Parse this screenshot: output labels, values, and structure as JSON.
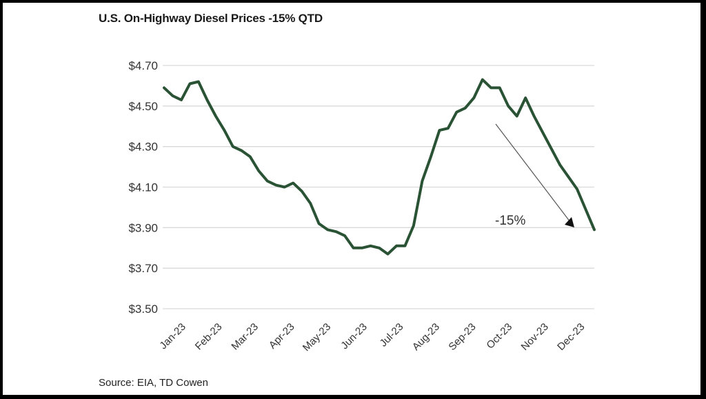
{
  "chart_data": {
    "type": "line",
    "title": "U.S. On-Highway Diesel Prices -15% QTD",
    "source": "Source: EIA, TD Cowen",
    "xlabel": "",
    "ylabel": "",
    "ylim": [
      3.5,
      4.7
    ],
    "grid": true,
    "y_ticks": [
      3.5,
      3.7,
      3.9,
      4.1,
      4.3,
      4.5,
      4.7
    ],
    "y_tick_labels": [
      "$3.50",
      "$3.70",
      "$3.90",
      "$4.10",
      "$4.30",
      "$4.50",
      "$4.70"
    ],
    "x_tick_labels": [
      "Jan-23",
      "Feb-23",
      "Mar-23",
      "Apr-23",
      "May-23",
      "Jun-23",
      "Jul-23",
      "Aug-23",
      "Sep-23",
      "Oct-23",
      "Nov-23",
      "Dec-23"
    ],
    "series": [
      {
        "name": "U.S. On-Highway Diesel Price",
        "color": "#2a5234",
        "values": [
          4.59,
          4.55,
          4.53,
          4.61,
          4.62,
          4.53,
          4.45,
          4.38,
          4.3,
          4.28,
          4.25,
          4.18,
          4.13,
          4.11,
          4.1,
          4.12,
          4.08,
          4.02,
          3.92,
          3.89,
          3.88,
          3.86,
          3.8,
          3.8,
          3.81,
          3.8,
          3.77,
          3.81,
          3.81,
          3.91,
          4.13,
          4.25,
          4.38,
          4.39,
          4.47,
          4.49,
          4.54,
          4.63,
          4.59,
          4.59,
          4.5,
          4.45,
          4.54,
          4.45,
          4.37,
          4.29,
          4.21,
          4.15,
          4.09,
          3.99,
          3.89
        ]
      }
    ],
    "annotations": [
      {
        "type": "arrow",
        "label": "-15%",
        "from_index": 40,
        "from_value": 4.42,
        "to_index": 48,
        "to_value": 3.9
      }
    ]
  }
}
